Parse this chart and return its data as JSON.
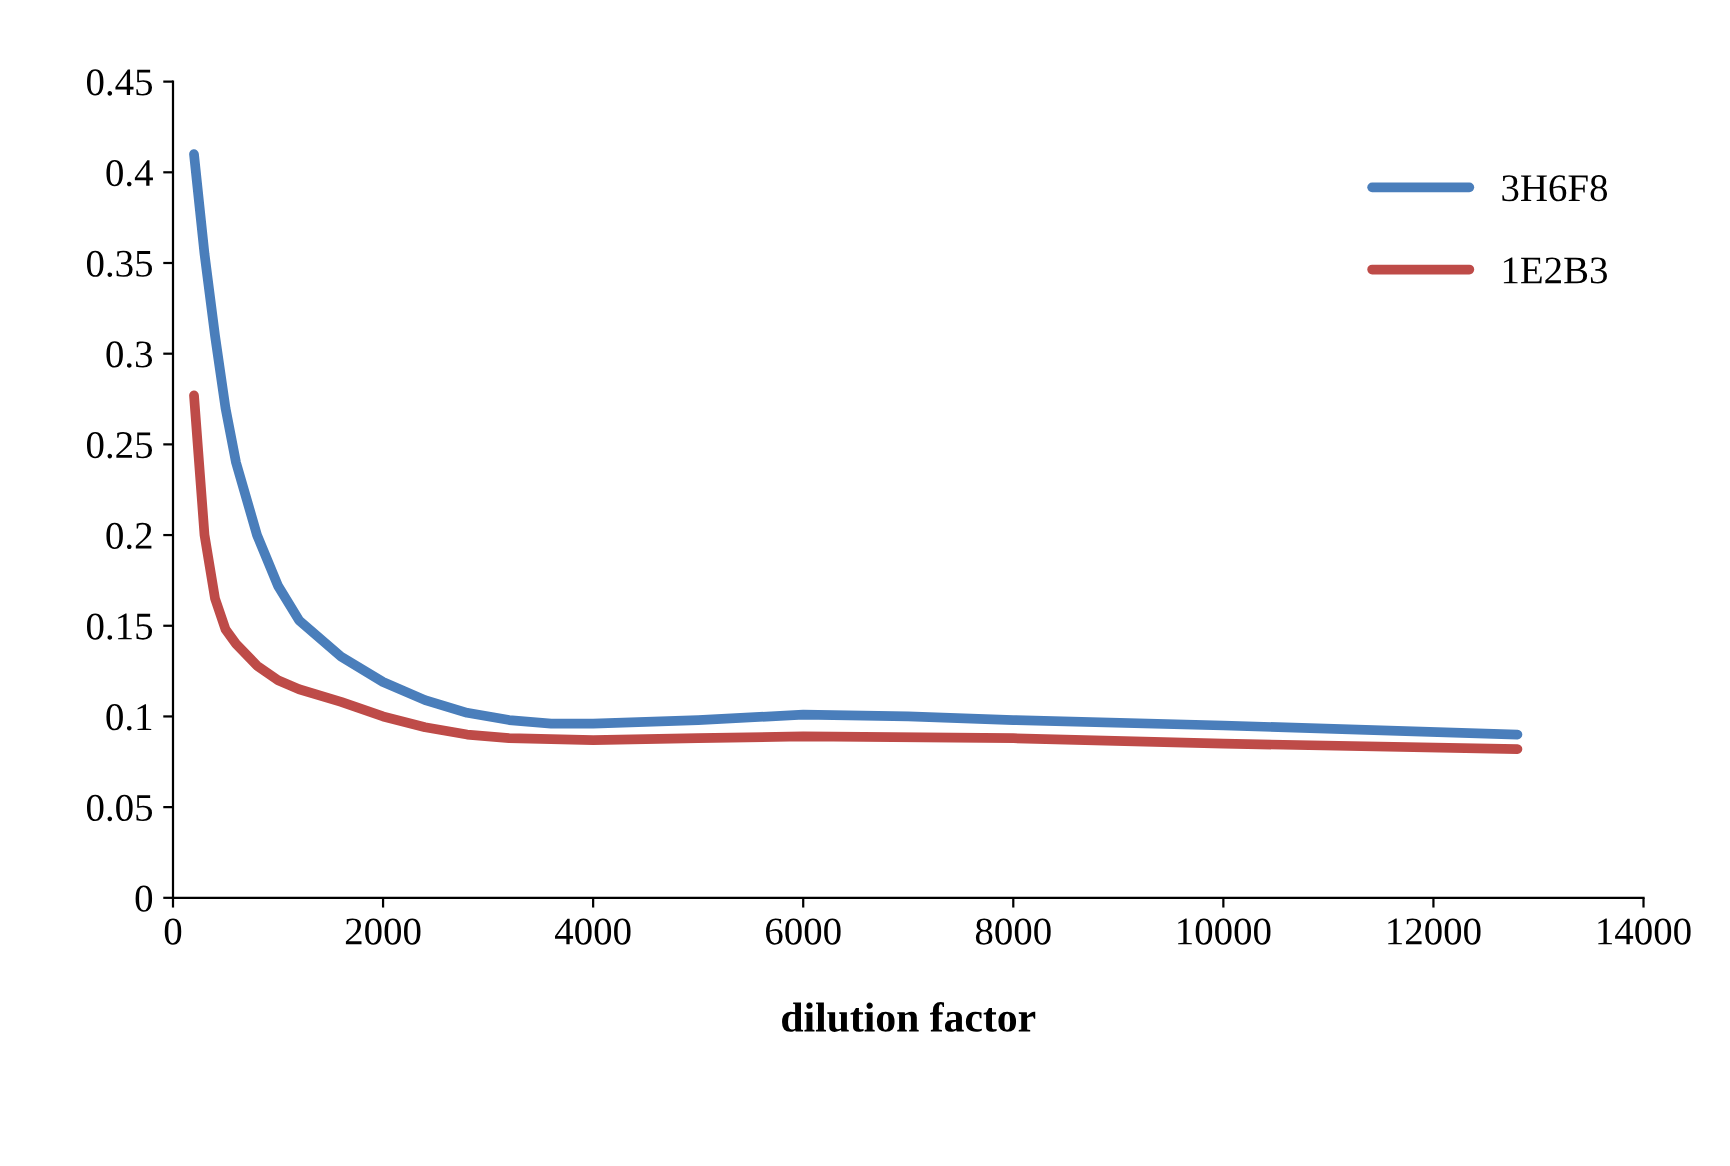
{
  "chart_data": {
    "type": "line",
    "xlabel": "dilution factor",
    "series": [
      {
        "name": "3H6F8",
        "color": "#4a7ebb",
        "x": [
          200,
          300,
          400,
          500,
          600,
          800,
          1000,
          1200,
          1600,
          2000,
          2400,
          2800,
          3200,
          3600,
          4000,
          5000,
          6000,
          7000,
          8000,
          10000,
          12800
        ],
        "values": [
          0.41,
          0.355,
          0.31,
          0.27,
          0.24,
          0.2,
          0.172,
          0.153,
          0.133,
          0.119,
          0.109,
          0.102,
          0.098,
          0.096,
          0.096,
          0.098,
          0.101,
          0.1,
          0.098,
          0.095,
          0.09
        ]
      },
      {
        "name": "1E2B3",
        "color": "#be4b48",
        "x": [
          200,
          300,
          400,
          500,
          600,
          800,
          1000,
          1200,
          1600,
          2000,
          2400,
          2800,
          3200,
          4000,
          5000,
          6000,
          8000,
          10000,
          12800
        ],
        "values": [
          0.277,
          0.2,
          0.165,
          0.148,
          0.14,
          0.128,
          0.12,
          0.115,
          0.108,
          0.1,
          0.094,
          0.09,
          0.088,
          0.087,
          0.088,
          0.089,
          0.088,
          0.085,
          0.082
        ]
      }
    ],
    "xlim": [
      0,
      14000
    ],
    "xticks": [
      0,
      2000,
      4000,
      6000,
      8000,
      10000,
      12000,
      14000
    ],
    "ylim": [
      0,
      0.45
    ],
    "yticks": [
      0,
      0.05,
      0.1,
      0.15,
      0.2,
      0.25,
      0.3,
      0.35,
      0.4,
      0.45
    ],
    "grid": false,
    "legend": "top right",
    "marker": "none",
    "line_style": "solid"
  }
}
